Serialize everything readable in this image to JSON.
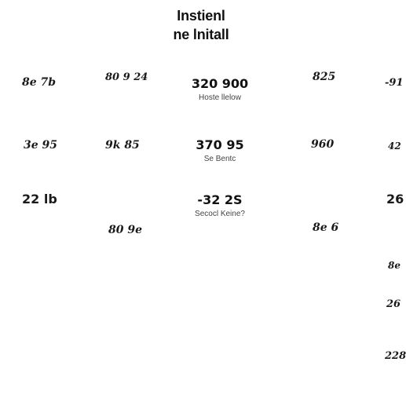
{
  "header": {
    "line1": "Instienl",
    "line2": "ne lnitall"
  },
  "rows": [
    {
      "col1": "8e 7b",
      "col2": "80 9 24",
      "center_value": "320 900",
      "center_caption": "Hoste llelow",
      "col4": "825",
      "col5": "-91"
    },
    {
      "col1": "3e 95",
      "col2": "9k 85",
      "center_value": "370 95",
      "center_caption": "Se Bentc",
      "col4": "960",
      "col5": "42"
    },
    {
      "col1": "22 lb",
      "col2": "80 9e",
      "center_value": "-32 2S",
      "center_caption": "Secocl Keine?",
      "col4": "8e 6",
      "col5": "26"
    }
  ],
  "right_column_extra": [
    "8e",
    "26",
    "228"
  ]
}
